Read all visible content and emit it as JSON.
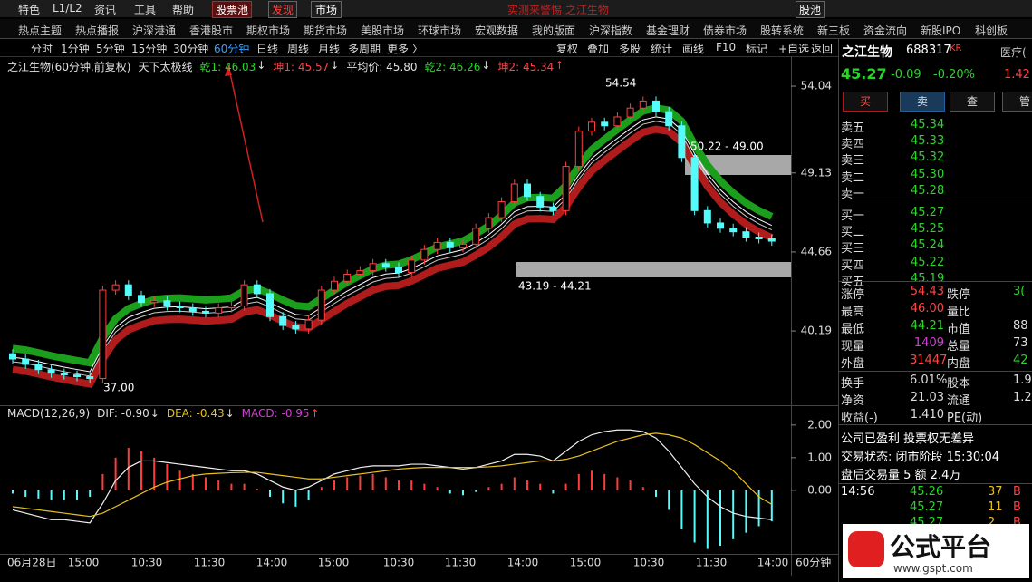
{
  "menu": {
    "items": [
      "特色",
      "L1/L2",
      "资讯",
      "工具",
      "帮助"
    ],
    "pool": "股票池",
    "discover": "发现",
    "market": "市场",
    "center": "实测来警惕 之江生物",
    "right": "股池"
  },
  "nav": [
    "热点主题",
    "热点播报",
    "沪深港通",
    "香港股市",
    "期权市场",
    "期货市场",
    "美股市场",
    "环球市场",
    "宏观数据",
    "我的版面",
    "沪深指数",
    "基金理财",
    "债券市场",
    "股转系统",
    "新三板",
    "资金流向",
    "新股IPO",
    "科创板"
  ],
  "toolbar": {
    "periods": [
      "分时",
      "1分钟",
      "5分钟",
      "15分钟",
      "30分钟",
      "60分钟",
      "日线",
      "周线",
      "月线",
      "多周期",
      "更多 〉"
    ],
    "active": 5,
    "tools": [
      "复权",
      "叠加",
      "多股",
      "统计",
      "画线",
      "F10",
      "标记",
      "+自选",
      "返回"
    ]
  },
  "chart_data": {
    "type": "candlestick",
    "legend": [
      {
        "text": "之江生物(60分钟.前复权)",
        "color": "#e0e0e0"
      },
      {
        "text": "天下太极线",
        "color": "#e0e0e0"
      },
      {
        "text": "乾1: 46.03",
        "color": "#2ad52a",
        "arrow": "↓"
      },
      {
        "text": "坤1: 45.57",
        "color": "#ff4444",
        "arrow": "↓"
      },
      {
        "text": "平均价: 45.80",
        "color": "#e0e0e0"
      },
      {
        "text": "乾2: 46.26",
        "color": "#2ad52a",
        "arrow": "↓"
      },
      {
        "text": "坤2: 45.34",
        "color": "#ff4444",
        "arrow": "↑"
      }
    ],
    "closes": [
      38.6,
      38.3,
      38.0,
      37.8,
      37.7,
      37.6,
      37.5,
      42.5,
      42.8,
      42.2,
      41.8,
      41.9,
      41.6,
      41.5,
      41.3,
      41.2,
      41.5,
      41.6,
      42.8,
      42.3,
      41.0,
      40.5,
      40.3,
      40.8,
      42.5,
      43.0,
      43.4,
      43.6,
      44.0,
      43.8,
      43.5,
      44.2,
      44.8,
      45.2,
      44.9,
      45.1,
      46.0,
      46.6,
      47.5,
      48.5,
      47.8,
      47.2,
      47.0,
      49.5,
      51.5,
      52.0,
      51.8,
      52.3,
      52.8,
      53.2,
      52.6,
      51.8,
      50.0,
      47.0,
      46.3,
      46.0,
      45.8,
      45.5,
      45.4,
      45.27
    ],
    "ylim": [
      36.09,
      55.53
    ],
    "yticks": [
      54.04,
      49.13,
      44.66,
      40.19
    ],
    "annotations": [
      "54.54",
      "37.00",
      "50.22 - 49.00",
      "43.19 - 44.21"
    ],
    "up_color": "#ff3c3c",
    "down_color": "#54fcfc",
    "macd": {
      "legend": [
        {
          "text": "MACD(12,26,9)",
          "color": "#e0e0e0"
        },
        {
          "text": "DIF: -0.90",
          "color": "#e0e0e0",
          "arrow": "↓"
        },
        {
          "text": "DEA: -0.43",
          "color": "#e8c020",
          "arrow": "↓"
        },
        {
          "text": "MACD: -0.95",
          "color": "#d040d0",
          "arrow": "↑"
        }
      ],
      "hist": [
        -0.1,
        -0.2,
        -0.25,
        -0.3,
        -0.3,
        -0.3,
        -0.2,
        0.5,
        1.0,
        1.3,
        1.2,
        1.0,
        0.8,
        0.6,
        0.5,
        0.4,
        0.3,
        0.2,
        0.2,
        0.05,
        -0.2,
        -0.4,
        -0.5,
        -0.3,
        0.1,
        0.3,
        0.4,
        0.45,
        0.5,
        0.4,
        0.3,
        0.3,
        0.2,
        0.1,
        -0.1,
        -0.15,
        -0.05,
        0.1,
        0.2,
        0.4,
        0.3,
        0.2,
        -0.1,
        0.2,
        0.5,
        0.6,
        0.5,
        0.4,
        0.3,
        0.1,
        -0.2,
        -0.6,
        -1.2,
        -1.6,
        -1.8,
        -1.7,
        -1.5,
        -1.3,
        -1.1,
        -0.95
      ],
      "dif": [
        -0.6,
        -0.7,
        -0.8,
        -0.9,
        -0.9,
        -0.95,
        -1.0,
        -0.4,
        0.3,
        0.7,
        0.9,
        0.9,
        0.85,
        0.8,
        0.75,
        0.7,
        0.65,
        0.6,
        0.6,
        0.5,
        0.3,
        0.1,
        0.0,
        0.1,
        0.3,
        0.5,
        0.6,
        0.7,
        0.75,
        0.75,
        0.75,
        0.8,
        0.8,
        0.75,
        0.7,
        0.65,
        0.7,
        0.8,
        0.9,
        1.1,
        1.1,
        1.05,
        0.9,
        1.2,
        1.5,
        1.7,
        1.8,
        1.85,
        1.85,
        1.8,
        1.6,
        1.2,
        0.7,
        0.2,
        -0.2,
        -0.5,
        -0.7,
        -0.8,
        -0.85,
        -0.9
      ],
      "dea": [
        -0.5,
        -0.55,
        -0.6,
        -0.65,
        -0.7,
        -0.75,
        -0.8,
        -0.7,
        -0.5,
        -0.3,
        -0.1,
        0.1,
        0.25,
        0.35,
        0.45,
        0.5,
        0.52,
        0.54,
        0.55,
        0.55,
        0.5,
        0.45,
        0.4,
        0.35,
        0.35,
        0.4,
        0.45,
        0.5,
        0.55,
        0.6,
        0.65,
        0.68,
        0.7,
        0.7,
        0.7,
        0.7,
        0.7,
        0.72,
        0.75,
        0.8,
        0.85,
        0.9,
        0.9,
        0.95,
        1.05,
        1.2,
        1.35,
        1.5,
        1.6,
        1.7,
        1.75,
        1.7,
        1.6,
        1.4,
        1.15,
        0.9,
        0.6,
        0.2,
        -0.2,
        -0.43
      ],
      "ylim": [
        -1.92,
        2.19
      ],
      "yticks": [
        {
          "value": 2,
          "label": "2.00"
        },
        {
          "value": 1,
          "label": "1.00"
        },
        {
          "value": 0,
          "label": "0.00"
        }
      ]
    },
    "x_labels": [
      "06月28日",
      "15:00",
      "10:30",
      "11:30",
      "14:00",
      "15:00",
      "10:30",
      "11:30",
      "14:00",
      "15:00",
      "10:30",
      "11:30",
      "14:00"
    ],
    "period": "60分钟"
  },
  "quote": {
    "name": "之江生物",
    "code": "688317",
    "tag": "KR",
    "sector": "医疗(",
    "price": "45.27",
    "change": "-0.09",
    "pct": "-0.20%",
    "side": "1.42",
    "buttons": [
      "买",
      "卖",
      "查",
      "管"
    ]
  },
  "order_book": [
    [
      "卖五",
      "45.34"
    ],
    [
      "卖四",
      "45.33"
    ],
    [
      "卖三",
      "45.32"
    ],
    [
      "卖二",
      "45.30"
    ],
    [
      "卖一",
      "45.28"
    ],
    [
      "买一",
      "45.27"
    ],
    [
      "买二",
      "45.25"
    ],
    [
      "买三",
      "45.24"
    ],
    [
      "买四",
      "45.22"
    ],
    [
      "买五",
      "45.19"
    ]
  ],
  "stats": [
    [
      [
        "涨停",
        "#ddd"
      ],
      [
        "54.43",
        "#ff4444"
      ],
      [
        "跌停",
        "#ddd"
      ],
      [
        "3(",
        "#2ad52a"
      ]
    ],
    [
      [
        "最高",
        "#ddd"
      ],
      [
        "46.00",
        "#ff4444"
      ],
      [
        "量比",
        "#ddd"
      ],
      [
        "",
        "#ddd"
      ]
    ],
    [
      [
        "最低",
        "#ddd"
      ],
      [
        "44.21",
        "#2ad52a"
      ],
      [
        "市值",
        "#ddd"
      ],
      [
        "88",
        "#ddd"
      ]
    ],
    [
      [
        "现量",
        "#ddd"
      ],
      [
        "1409",
        "#d040d0"
      ],
      [
        "总量",
        "#ddd"
      ],
      [
        "73",
        "#ddd"
      ]
    ],
    [
      [
        "外盘",
        "#ddd"
      ],
      [
        "31447",
        "#ff4444"
      ],
      [
        "内盘",
        "#ddd"
      ],
      [
        "42",
        "#2ad52a"
      ]
    ],
    [
      [
        "换手",
        "#ddd"
      ],
      [
        "6.01%",
        "#ddd"
      ],
      [
        "股本",
        "#ddd"
      ],
      [
        "1.9",
        "#ddd"
      ]
    ],
    [
      [
        "净资",
        "#ddd"
      ],
      [
        "21.03",
        "#ddd"
      ],
      [
        "流通",
        "#ddd"
      ],
      [
        "1.2",
        "#ddd"
      ]
    ],
    [
      [
        "收益(-)",
        "#ddd"
      ],
      [
        "1.410",
        "#ddd"
      ],
      [
        "PE(动)",
        "#ddd"
      ],
      [
        "",
        "#ddd"
      ]
    ]
  ],
  "notes": [
    "公司已盈利 投票权无差异",
    "交易状态: 闭市阶段 15:30:04",
    "盘后交易量 5 额 2.4万"
  ],
  "ticks": [
    [
      "14:56",
      "45.26",
      "37",
      "B"
    ],
    [
      "",
      "45.27",
      "11",
      "B"
    ],
    [
      "",
      "45.27",
      "2",
      "B"
    ]
  ],
  "watermark": {
    "title": "公式平台",
    "url": "www.gspt.com"
  }
}
